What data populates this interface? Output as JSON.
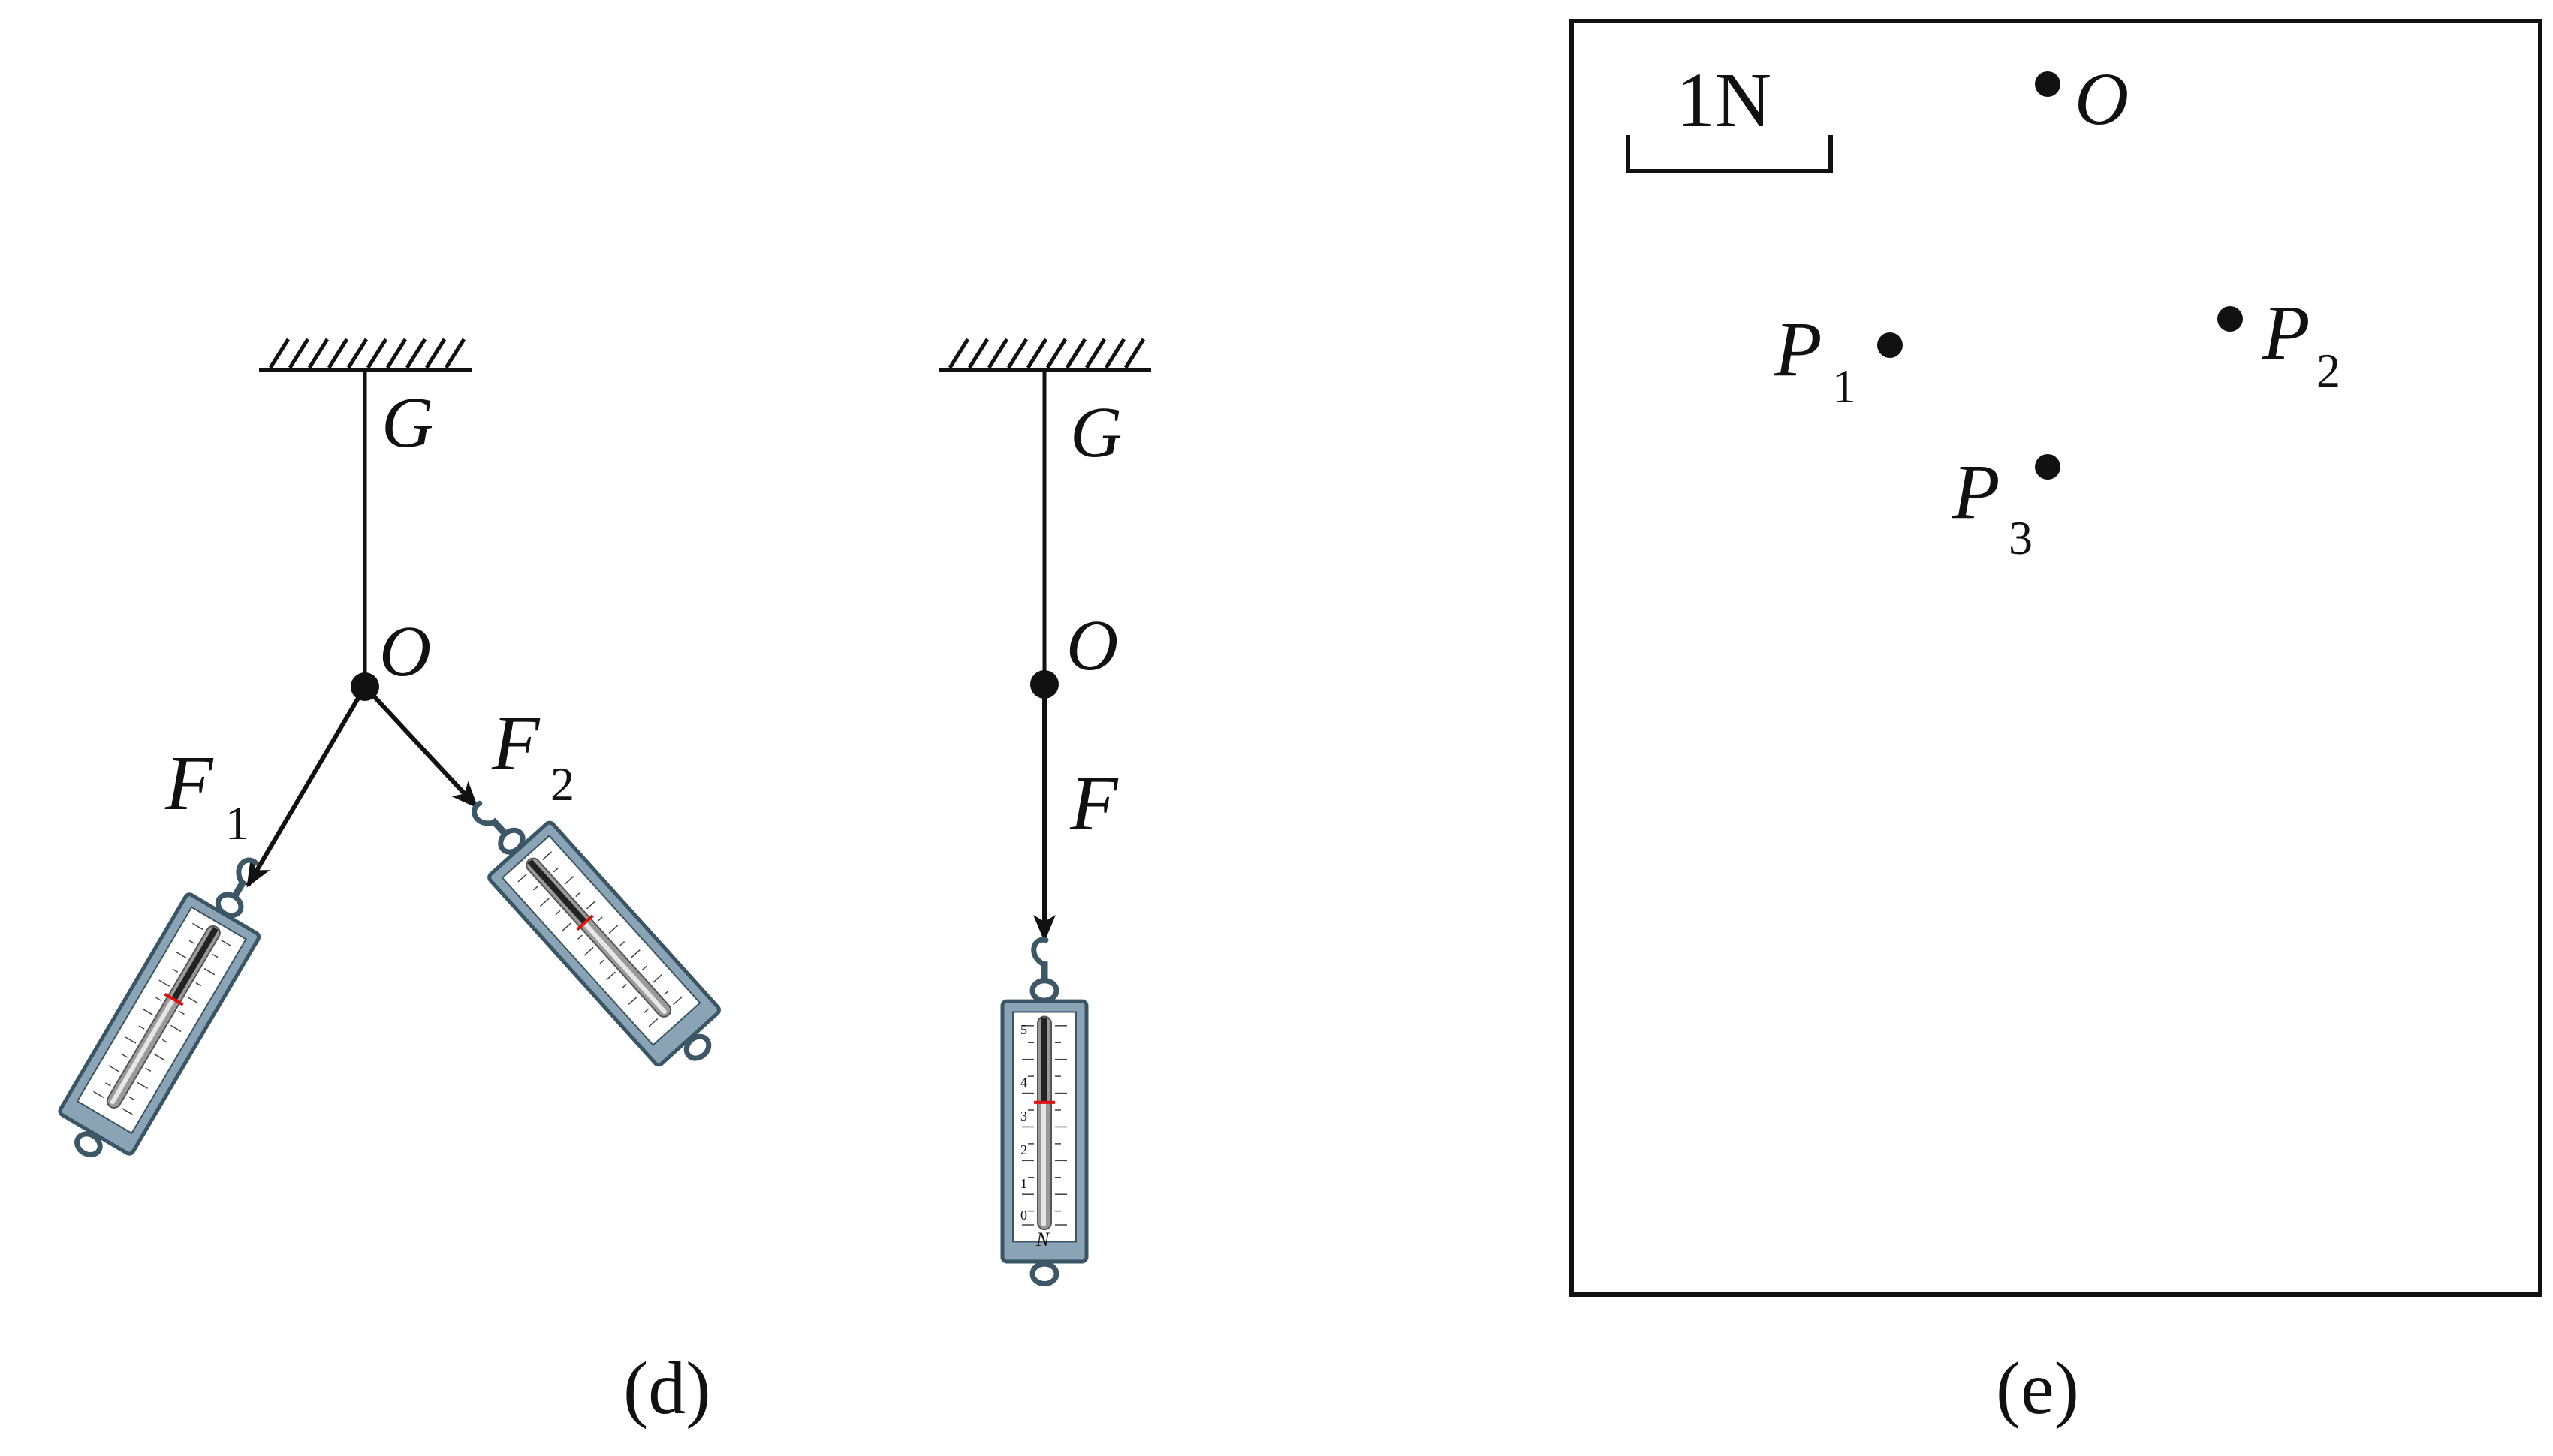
{
  "figure_d": {
    "caption": "(d)",
    "left_setup": {
      "ceiling_point": "G",
      "knot": "O",
      "force_1": {
        "letter": "F",
        "subscript": "1"
      },
      "force_2": {
        "letter": "F",
        "subscript": "2"
      }
    },
    "right_setup": {
      "ceiling_point": "G",
      "knot": "O",
      "force": "F"
    },
    "spring_scale": {
      "unit": "N",
      "ticks": [
        "0",
        "1",
        "2",
        "3",
        "4",
        "5"
      ]
    }
  },
  "figure_e": {
    "caption": "(e)",
    "scale_label": "1N",
    "point_o": "O",
    "point_p1": {
      "letter": "P",
      "subscript": "1"
    },
    "point_p2": {
      "letter": "P",
      "subscript": "2"
    },
    "point_p3": {
      "letter": "P",
      "subscript": "3"
    }
  }
}
